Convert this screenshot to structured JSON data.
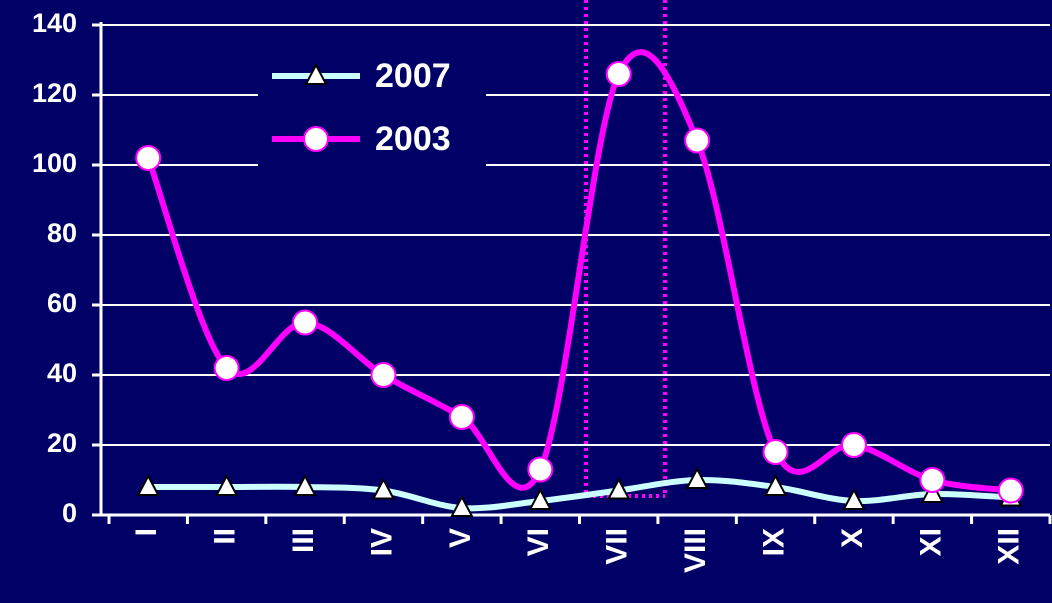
{
  "chart_data": {
    "type": "line",
    "categories": [
      "I",
      "II",
      "III",
      "IV",
      "V",
      "VI",
      "VII",
      "VIII",
      "IX",
      "X",
      "XI",
      "XII"
    ],
    "series": [
      {
        "name": "2007",
        "color": "#ccffff",
        "marker": "triangle",
        "values": [
          8,
          8,
          8,
          7,
          2,
          4,
          7,
          10,
          8,
          4,
          6,
          5
        ]
      },
      {
        "name": "2003",
        "color": "#ff00ff",
        "marker": "circle",
        "values": [
          102,
          42,
          55,
          40,
          28,
          13,
          126,
          107,
          18,
          20,
          10,
          7
        ]
      }
    ],
    "ylim": [
      0,
      140
    ],
    "yticks": [
      0,
      20,
      40,
      60,
      80,
      100,
      120,
      140
    ],
    "grid": true,
    "legend": "top-left"
  }
}
